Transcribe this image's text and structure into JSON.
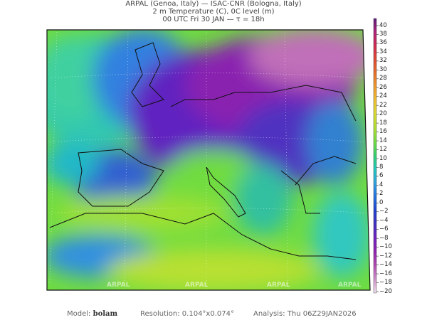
{
  "header": {
    "line1": "ARPAL (Genoa, Italy)  —  ISAC-CNR (Bologna, Italy)",
    "line2": "2 m Temperature (C), 0C level (m)",
    "line3": "00 UTC Fri 30 JAN  —  τ = 18h"
  },
  "colorbar": {
    "ticks": [
      "40",
      "38",
      "36",
      "34",
      "32",
      "30",
      "28",
      "26",
      "24",
      "22",
      "20",
      "18",
      "16",
      "14",
      "12",
      "10",
      "8",
      "6",
      "4",
      "2",
      "0",
      "−2",
      "−4",
      "−6",
      "−8",
      "−10",
      "−12",
      "−14",
      "−16",
      "−18",
      "−20"
    ],
    "colors": [
      "#5a1a7a",
      "#b0207a",
      "#d02850",
      "#e04a30",
      "#e8702a",
      "#f09a2a",
      "#f0c030",
      "#d8dc30",
      "#b0e030",
      "#70dc40",
      "#30d070",
      "#20c8c0",
      "#30a0e0",
      "#2070e0",
      "#2040d0",
      "#4030c0",
      "#7020c0",
      "#9020b0",
      "#b04ab0",
      "#d090c8",
      "#f0e0ee"
    ]
  },
  "watermark": "ARPAL",
  "footer": {
    "model_label": "Model:",
    "model_value": "bolam",
    "resolution": "Resolution: 0.104°x0.074°",
    "analysis": "Analysis: Thu 06Z29JAN2026"
  }
}
